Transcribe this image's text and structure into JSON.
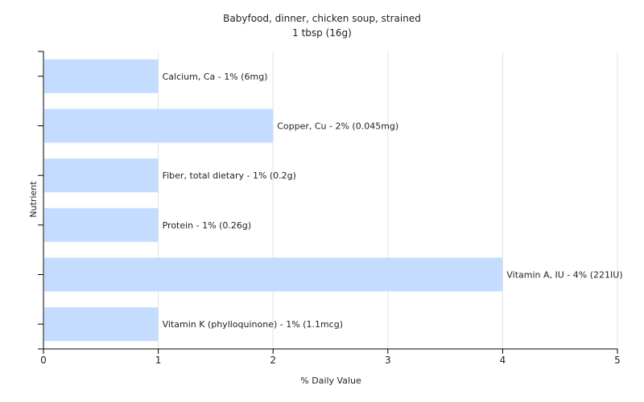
{
  "chart_data": {
    "type": "bar",
    "orientation": "horizontal",
    "title": "Babyfood, dinner, chicken soup, strained",
    "subtitle": "1 tbsp (16g)",
    "xlabel": "% Daily Value",
    "ylabel": "Nutrient",
    "xlim": [
      0,
      5
    ],
    "xticks": [
      0,
      1,
      2,
      3,
      4,
      5
    ],
    "grid": true,
    "legend": "none",
    "bar_color": "#c4dcff",
    "categories": [
      "Calcium, Ca",
      "Copper, Cu",
      "Fiber, total dietary",
      "Protein",
      "Vitamin A, IU",
      "Vitamin K (phylloquinone)"
    ],
    "values": [
      1,
      2,
      1,
      1,
      4,
      1
    ],
    "labels": [
      "Calcium, Ca - 1% (6mg)",
      "Copper, Cu - 2% (0.045mg)",
      "Fiber, total dietary - 1% (0.2g)",
      "Protein - 1% (0.26g)",
      "Vitamin A, IU - 4% (221IU)",
      "Vitamin K (phylloquinone) - 1% (1.1mcg)"
    ]
  }
}
